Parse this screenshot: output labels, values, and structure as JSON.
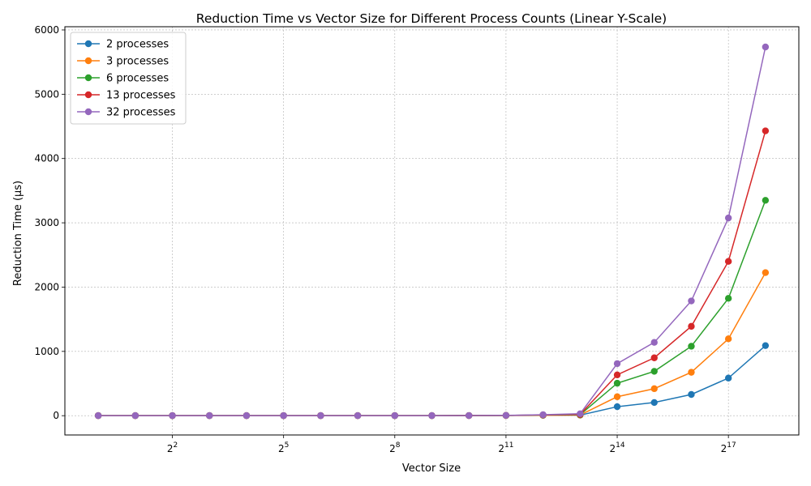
{
  "chart_data": {
    "type": "line",
    "title": "Reduction Time vs Vector Size for Different Process Counts (Linear Y-Scale)",
    "xlabel": "Vector Size",
    "ylabel": "Reduction Time (μs)",
    "xscale": "log2",
    "xlim_exponent": [
      -0.9,
      18.9
    ],
    "ylim": [
      -300,
      6050
    ],
    "x_exponents": [
      0,
      1,
      2,
      3,
      4,
      5,
      6,
      7,
      8,
      9,
      10,
      11,
      12,
      13,
      14,
      15,
      16,
      17,
      18
    ],
    "x": [
      1,
      2,
      4,
      8,
      16,
      32,
      64,
      128,
      256,
      512,
      1024,
      2048,
      4096,
      8192,
      16384,
      32768,
      65536,
      131072,
      262144
    ],
    "x_ticks": [
      {
        "exp": 2,
        "base": "2",
        "sup": "2"
      },
      {
        "exp": 5,
        "base": "2",
        "sup": "5"
      },
      {
        "exp": 8,
        "base": "2",
        "sup": "8"
      },
      {
        "exp": 11,
        "base": "2",
        "sup": "11"
      },
      {
        "exp": 14,
        "base": "2",
        "sup": "14"
      },
      {
        "exp": 17,
        "base": "2",
        "sup": "17"
      }
    ],
    "y_ticks": [
      0,
      1000,
      2000,
      3000,
      4000,
      5000,
      6000
    ],
    "y_tick_labels": [
      "0",
      "1000",
      "2000",
      "3000",
      "4000",
      "5000",
      "6000"
    ],
    "grid": true,
    "legend_position": "top-left",
    "series": [
      {
        "name": "2 processes",
        "color": "#1f77b4",
        "values": [
          1,
          1,
          1,
          1,
          1,
          1,
          1,
          1,
          1,
          1,
          2,
          3,
          5,
          8,
          140,
          205,
          330,
          585,
          1090
        ]
      },
      {
        "name": "3 processes",
        "color": "#ff7f0e",
        "values": [
          1,
          1,
          1,
          1,
          1,
          1,
          1,
          1,
          1,
          1,
          2,
          3,
          6,
          10,
          295,
          420,
          675,
          1195,
          2225
        ]
      },
      {
        "name": "6 processes",
        "color": "#2ca02c",
        "values": [
          1,
          1,
          1,
          1,
          1,
          1,
          1,
          1,
          1,
          1,
          2,
          4,
          10,
          15,
          505,
          690,
          1080,
          1825,
          3350
        ]
      },
      {
        "name": "13 processes",
        "color": "#d62728",
        "values": [
          1,
          1,
          1,
          1,
          1,
          1,
          1,
          1,
          1,
          1,
          2,
          4,
          12,
          20,
          635,
          900,
          1390,
          2400,
          4430
        ]
      },
      {
        "name": "32 processes",
        "color": "#9467bd",
        "values": [
          1,
          1,
          1,
          1,
          1,
          1,
          1,
          1,
          1,
          1,
          2,
          5,
          15,
          30,
          810,
          1140,
          1785,
          3075,
          5735
        ]
      }
    ]
  }
}
